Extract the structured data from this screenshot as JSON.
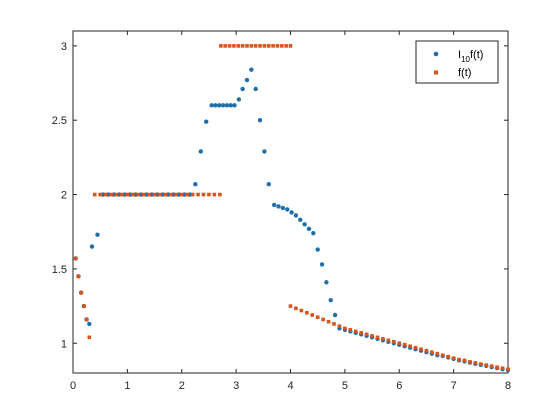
{
  "chart_data": {
    "type": "scatter",
    "xlim": [
      0,
      8
    ],
    "ylim": [
      0.8,
      3.1
    ],
    "xticks": [
      "0",
      "1",
      "2",
      "3",
      "4",
      "5",
      "6",
      "7",
      "8"
    ],
    "yticks": [
      "1",
      "1.5",
      "2",
      "2.5",
      "3"
    ],
    "grid": false,
    "legend_position": "top-right",
    "series": [
      {
        "name_main": "I",
        "name_sub": "10",
        "name_rest": "f(t)",
        "color": "#1f6fa8",
        "points": [
          [
            0.05,
            1.57
          ],
          [
            0.1,
            1.45
          ],
          [
            0.15,
            1.34
          ],
          [
            0.2,
            1.25
          ],
          [
            0.25,
            1.16
          ],
          [
            0.3,
            1.13
          ],
          [
            0.35,
            1.65
          ],
          [
            0.45,
            1.73
          ],
          [
            0.55,
            2.0
          ],
          [
            0.65,
            2.0
          ],
          [
            0.75,
            2.0
          ],
          [
            0.85,
            2.0
          ],
          [
            0.95,
            2.0
          ],
          [
            1.05,
            2.0
          ],
          [
            1.15,
            2.0
          ],
          [
            1.25,
            2.0
          ],
          [
            1.35,
            2.0
          ],
          [
            1.45,
            2.0
          ],
          [
            1.55,
            2.0
          ],
          [
            1.65,
            2.0
          ],
          [
            1.75,
            2.0
          ],
          [
            1.85,
            2.0
          ],
          [
            1.95,
            2.0
          ],
          [
            2.05,
            2.0
          ],
          [
            2.15,
            2.0
          ],
          [
            2.25,
            2.07
          ],
          [
            2.35,
            2.29
          ],
          [
            2.45,
            2.49
          ],
          [
            2.55,
            2.6
          ],
          [
            2.62,
            2.6
          ],
          [
            2.69,
            2.6
          ],
          [
            2.76,
            2.6
          ],
          [
            2.83,
            2.6
          ],
          [
            2.9,
            2.6
          ],
          [
            2.97,
            2.6
          ],
          [
            3.05,
            2.64
          ],
          [
            3.12,
            2.71
          ],
          [
            3.2,
            2.77
          ],
          [
            3.28,
            2.84
          ],
          [
            3.36,
            2.71
          ],
          [
            3.44,
            2.5
          ],
          [
            3.52,
            2.29
          ],
          [
            3.6,
            2.07
          ],
          [
            3.7,
            1.93
          ],
          [
            3.78,
            1.92
          ],
          [
            3.86,
            1.91
          ],
          [
            3.94,
            1.9
          ],
          [
            4.02,
            1.88
          ],
          [
            4.1,
            1.86
          ],
          [
            4.18,
            1.83
          ],
          [
            4.26,
            1.8
          ],
          [
            4.34,
            1.77
          ],
          [
            4.42,
            1.74
          ],
          [
            4.5,
            1.63
          ],
          [
            4.58,
            1.53
          ],
          [
            4.66,
            1.41
          ],
          [
            4.74,
            1.29
          ],
          [
            4.82,
            1.19
          ],
          [
            4.9,
            1.1
          ],
          [
            5.0,
            1.09
          ],
          [
            5.1,
            1.08
          ],
          [
            5.2,
            1.07
          ],
          [
            5.3,
            1.06
          ],
          [
            5.4,
            1.05
          ],
          [
            5.5,
            1.04
          ],
          [
            5.6,
            1.03
          ],
          [
            5.7,
            1.02
          ],
          [
            5.8,
            1.01
          ],
          [
            5.9,
            1.0
          ],
          [
            6.0,
            0.99
          ],
          [
            6.1,
            0.98
          ],
          [
            6.2,
            0.97
          ],
          [
            6.3,
            0.96
          ],
          [
            6.4,
            0.95
          ],
          [
            6.5,
            0.94
          ],
          [
            6.6,
            0.93
          ],
          [
            6.7,
            0.92
          ],
          [
            6.8,
            0.915
          ],
          [
            6.9,
            0.905
          ],
          [
            7.0,
            0.895
          ],
          [
            7.1,
            0.885
          ],
          [
            7.2,
            0.878
          ],
          [
            7.3,
            0.87
          ],
          [
            7.4,
            0.862
          ],
          [
            7.5,
            0.855
          ],
          [
            7.6,
            0.848
          ],
          [
            7.7,
            0.84
          ],
          [
            7.8,
            0.833
          ],
          [
            7.9,
            0.826
          ],
          [
            8.0,
            0.82
          ]
        ]
      },
      {
        "name_main": "f(t)",
        "name_sub": "",
        "name_rest": "",
        "color": "#d9541a",
        "points": [
          [
            0.05,
            1.57
          ],
          [
            0.1,
            1.45
          ],
          [
            0.15,
            1.34
          ],
          [
            0.2,
            1.25
          ],
          [
            0.25,
            1.16
          ],
          [
            0.3,
            1.04
          ],
          [
            0.4,
            2.0
          ],
          [
            0.5,
            2.0
          ],
          [
            0.6,
            2.0
          ],
          [
            0.7,
            2.0
          ],
          [
            0.8,
            2.0
          ],
          [
            0.9,
            2.0
          ],
          [
            1.0,
            2.0
          ],
          [
            1.1,
            2.0
          ],
          [
            1.2,
            2.0
          ],
          [
            1.3,
            2.0
          ],
          [
            1.4,
            2.0
          ],
          [
            1.5,
            2.0
          ],
          [
            1.6,
            2.0
          ],
          [
            1.7,
            2.0
          ],
          [
            1.8,
            2.0
          ],
          [
            1.9,
            2.0
          ],
          [
            2.0,
            2.0
          ],
          [
            2.1,
            2.0
          ],
          [
            2.2,
            2.0
          ],
          [
            2.3,
            2.0
          ],
          [
            2.4,
            2.0
          ],
          [
            2.5,
            2.0
          ],
          [
            2.6,
            2.0
          ],
          [
            2.7,
            2.0
          ],
          [
            2.72,
            3.0
          ],
          [
            2.8,
            3.0
          ],
          [
            2.88,
            3.0
          ],
          [
            2.96,
            3.0
          ],
          [
            3.04,
            3.0
          ],
          [
            3.12,
            3.0
          ],
          [
            3.2,
            3.0
          ],
          [
            3.28,
            3.0
          ],
          [
            3.36,
            3.0
          ],
          [
            3.44,
            3.0
          ],
          [
            3.52,
            3.0
          ],
          [
            3.6,
            3.0
          ],
          [
            3.68,
            3.0
          ],
          [
            3.76,
            3.0
          ],
          [
            3.84,
            3.0
          ],
          [
            3.92,
            3.0
          ],
          [
            4.0,
            3.0
          ],
          [
            4.0,
            1.25
          ],
          [
            4.1,
            1.235
          ],
          [
            4.2,
            1.22
          ],
          [
            4.3,
            1.205
          ],
          [
            4.4,
            1.19
          ],
          [
            4.5,
            1.175
          ],
          [
            4.6,
            1.16
          ],
          [
            4.7,
            1.145
          ],
          [
            4.8,
            1.13
          ],
          [
            4.9,
            1.115
          ],
          [
            5.0,
            1.1
          ],
          [
            5.1,
            1.09
          ],
          [
            5.2,
            1.08
          ],
          [
            5.3,
            1.07
          ],
          [
            5.4,
            1.06
          ],
          [
            5.5,
            1.05
          ],
          [
            5.6,
            1.04
          ],
          [
            5.7,
            1.03
          ],
          [
            5.8,
            1.02
          ],
          [
            5.9,
            1.01
          ],
          [
            6.0,
            1.0
          ],
          [
            6.1,
            0.99
          ],
          [
            6.2,
            0.98
          ],
          [
            6.3,
            0.97
          ],
          [
            6.4,
            0.96
          ],
          [
            6.5,
            0.95
          ],
          [
            6.6,
            0.94
          ],
          [
            6.7,
            0.93
          ],
          [
            6.8,
            0.92
          ],
          [
            6.9,
            0.91
          ],
          [
            7.0,
            0.9
          ],
          [
            7.1,
            0.89
          ],
          [
            7.2,
            0.885
          ],
          [
            7.3,
            0.875
          ],
          [
            7.4,
            0.868
          ],
          [
            7.5,
            0.86
          ],
          [
            7.6,
            0.853
          ],
          [
            7.7,
            0.846
          ],
          [
            7.8,
            0.839
          ],
          [
            7.9,
            0.832
          ],
          [
            8.0,
            0.825
          ]
        ]
      }
    ]
  }
}
